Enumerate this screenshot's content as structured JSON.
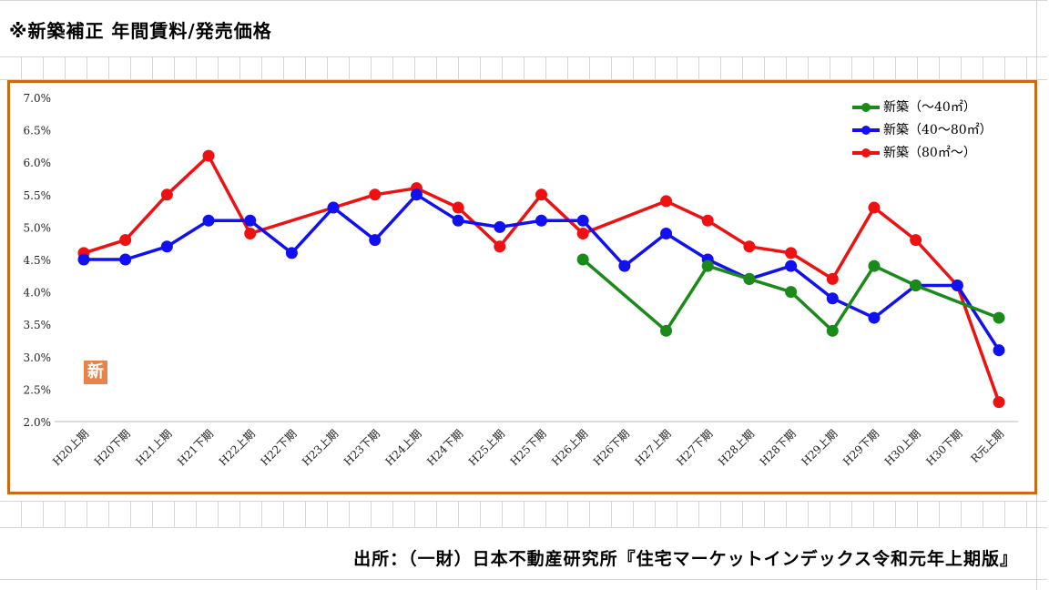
{
  "page": {
    "title": "※新築補正 年間賃料/発売価格",
    "source": "出所：（一財）日本不動産研究所『住宅マーケットインデックス令和元年上期版』",
    "badge": "新"
  },
  "colors": {
    "frame": "#c86b12",
    "grid": "#d6d6d6",
    "badge": "#e8844a"
  },
  "chart_data": {
    "type": "line",
    "categories": [
      "H20上期",
      "H20下期",
      "H21上期",
      "H21下期",
      "H22上期",
      "H22下期",
      "H23上期",
      "H23下期",
      "H24上期",
      "H24下期",
      "H25上期",
      "H25下期",
      "H26上期",
      "H26下期",
      "H27上期",
      "H27下期",
      "H28上期",
      "H28下期",
      "H29上期",
      "H29下期",
      "H30上期",
      "H30下期",
      "R元上期"
    ],
    "y_ticks": [
      "2.0%",
      "2.5%",
      "3.0%",
      "3.5%",
      "4.0%",
      "4.5%",
      "5.0%",
      "5.5%",
      "6.0%",
      "6.5%",
      "7.0%"
    ],
    "ylim": [
      2.0,
      7.0
    ],
    "grid": false,
    "legend_position": "top-right",
    "series": [
      {
        "name": "新築（～40㎡）",
        "color": "#1a8a1a",
        "values": [
          null,
          null,
          null,
          null,
          null,
          null,
          null,
          null,
          null,
          null,
          null,
          null,
          4.5,
          null,
          3.4,
          4.4,
          4.2,
          4.0,
          3.4,
          4.4,
          4.1,
          null,
          3.6
        ]
      },
      {
        "name": "新築（40～80㎡）",
        "color": "#1010f0",
        "values": [
          4.5,
          4.5,
          4.7,
          5.1,
          5.1,
          4.6,
          5.3,
          4.8,
          5.5,
          5.1,
          5.0,
          5.1,
          5.1,
          4.4,
          4.9,
          4.5,
          4.2,
          4.4,
          3.9,
          3.6,
          4.1,
          4.1,
          3.1
        ]
      },
      {
        "name": "新築（80㎡～）",
        "color": "#ee1111",
        "values": [
          4.6,
          4.8,
          5.5,
          6.1,
          4.9,
          null,
          5.3,
          5.5,
          5.6,
          5.3,
          4.7,
          5.5,
          4.9,
          null,
          5.4,
          5.1,
          4.7,
          4.6,
          4.2,
          5.3,
          4.8,
          4.1,
          2.3
        ]
      }
    ]
  }
}
